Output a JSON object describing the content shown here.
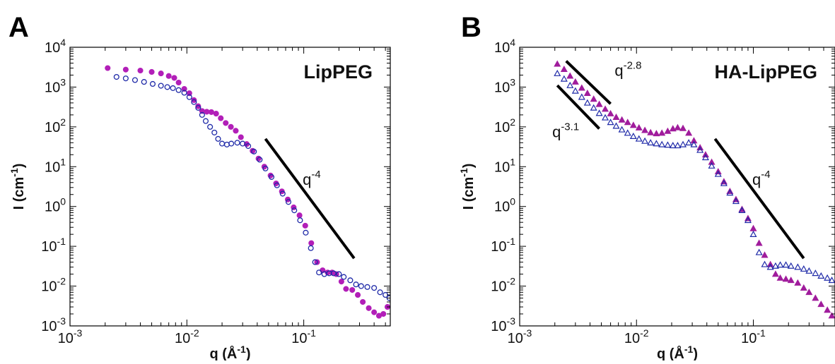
{
  "chart_data": [
    {
      "type": "scatter",
      "panel": "A",
      "title": "LipPEG",
      "xlabel": "q (Å-1)",
      "ylabel": "I (cm-1)",
      "x_scale": "log",
      "y_scale": "log",
      "xlim": [
        0.001,
        0.55
      ],
      "ylim": [
        0.001,
        10000
      ],
      "grid": false,
      "x_ticks": [
        {
          "base": "10",
          "exp": "-3",
          "value": 0.001
        },
        {
          "base": "10",
          "exp": "-2",
          "value": 0.01
        },
        {
          "base": "10",
          "exp": "-1",
          "value": 0.1
        }
      ],
      "y_ticks": [
        {
          "base": "10",
          "exp": "4",
          "value": 10000
        },
        {
          "base": "10",
          "exp": "3",
          "value": 1000
        },
        {
          "base": "10",
          "exp": "2",
          "value": 100
        },
        {
          "base": "10",
          "exp": "1",
          "value": 10
        },
        {
          "base": "10",
          "exp": "0",
          "value": 1
        },
        {
          "base": "10",
          "exp": "-1",
          "value": 0.1
        },
        {
          "base": "10",
          "exp": "-2",
          "value": 0.01
        },
        {
          "base": "10",
          "exp": "-3",
          "value": 0.001
        }
      ],
      "series": [
        {
          "color": "#b21fb8",
          "marker": "filled-circle",
          "x": [
            0.0021,
            0.003,
            0.004,
            0.005,
            0.006,
            0.007,
            0.0078,
            0.0085,
            0.0095,
            0.0105,
            0.0115,
            0.0125,
            0.0135,
            0.0148,
            0.0162,
            0.0178,
            0.0195,
            0.0215,
            0.0238,
            0.0262,
            0.029,
            0.0325,
            0.0365,
            0.041,
            0.046,
            0.052,
            0.058,
            0.065,
            0.073,
            0.082,
            0.092,
            0.103,
            0.116,
            0.13,
            0.145,
            0.16,
            0.175,
            0.19,
            0.21,
            0.23,
            0.26,
            0.29,
            0.32,
            0.36,
            0.4,
            0.44,
            0.48,
            0.52
          ],
          "y": [
            3000,
            2750,
            2600,
            2400,
            2200,
            1900,
            1700,
            1300,
            900,
            700,
            470,
            330,
            250,
            240,
            235,
            215,
            165,
            125,
            100,
            80,
            55,
            37,
            25,
            16,
            10,
            6,
            3.8,
            2.4,
            1.5,
            0.95,
            0.6,
            0.33,
            0.12,
            0.04,
            0.025,
            0.022,
            0.022,
            0.02,
            0.013,
            0.0085,
            0.008,
            0.006,
            0.004,
            0.0028,
            0.0022,
            0.0018,
            0.002,
            0.003
          ]
        },
        {
          "color": "#1f2aa8",
          "marker": "open-circle",
          "x": [
            0.0025,
            0.003,
            0.0036,
            0.0043,
            0.0051,
            0.006,
            0.0068,
            0.0076,
            0.0085,
            0.0095,
            0.0105,
            0.0115,
            0.0125,
            0.0135,
            0.0145,
            0.0158,
            0.0172,
            0.0185,
            0.02,
            0.022,
            0.024,
            0.027,
            0.03,
            0.0335,
            0.0375,
            0.042,
            0.047,
            0.053,
            0.059,
            0.066,
            0.074,
            0.083,
            0.093,
            0.104,
            0.115,
            0.125,
            0.135,
            0.15,
            0.165,
            0.18,
            0.2,
            0.22,
            0.25,
            0.28,
            0.31,
            0.35,
            0.4,
            0.45,
            0.5,
            0.54
          ],
          "y": [
            1800,
            1650,
            1500,
            1350,
            1200,
            1080,
            1000,
            940,
            840,
            720,
            560,
            420,
            300,
            200,
            140,
            100,
            72,
            50,
            38,
            36,
            38,
            40,
            38,
            33,
            24,
            15,
            9,
            5.5,
            3.4,
            2.1,
            1.3,
            0.8,
            0.45,
            0.22,
            0.09,
            0.04,
            0.022,
            0.02,
            0.021,
            0.021,
            0.02,
            0.017,
            0.014,
            0.011,
            0.01,
            0.0095,
            0.009,
            0.007,
            0.006,
            0.005
          ]
        }
      ],
      "reference_lines": [
        {
          "label_base": "q",
          "label_exp": "-4",
          "x": [
            0.047,
            0.27
          ],
          "y": [
            50,
            0.05
          ],
          "label_x": 0.098,
          "label_y": 3.5
        }
      ]
    },
    {
      "type": "scatter",
      "panel": "B",
      "title": "HA-LipPEG",
      "xlabel": "q (Å-1)",
      "ylabel": "I (cm-1)",
      "x_scale": "log",
      "y_scale": "log",
      "xlim": [
        0.001,
        0.5
      ],
      "ylim": [
        0.001,
        10000
      ],
      "grid": false,
      "x_ticks": [
        {
          "base": "10",
          "exp": "-3",
          "value": 0.001
        },
        {
          "base": "10",
          "exp": "-2",
          "value": 0.01
        },
        {
          "base": "10",
          "exp": "-1",
          "value": 0.1
        }
      ],
      "y_ticks": [
        {
          "base": "10",
          "exp": "4",
          "value": 10000
        },
        {
          "base": "10",
          "exp": "3",
          "value": 1000
        },
        {
          "base": "10",
          "exp": "2",
          "value": 100
        },
        {
          "base": "10",
          "exp": "1",
          "value": 10
        },
        {
          "base": "10",
          "exp": "0",
          "value": 1
        },
        {
          "base": "10",
          "exp": "-1",
          "value": 0.1
        },
        {
          "base": "10",
          "exp": "-2",
          "value": 0.01
        },
        {
          "base": "10",
          "exp": "-3",
          "value": 0.001
        }
      ],
      "series": [
        {
          "color": "#a01c9c",
          "marker": "filled-triangle",
          "x": [
            0.0021,
            0.0024,
            0.0027,
            0.003,
            0.0034,
            0.0038,
            0.0043,
            0.0048,
            0.0054,
            0.006,
            0.0067,
            0.0075,
            0.0084,
            0.0094,
            0.0105,
            0.0118,
            0.0132,
            0.0148,
            0.0165,
            0.0185,
            0.0205,
            0.0225,
            0.025,
            0.028,
            0.031,
            0.035,
            0.039,
            0.044,
            0.05,
            0.056,
            0.063,
            0.071,
            0.08,
            0.09,
            0.1,
            0.112,
            0.125,
            0.14,
            0.155,
            0.17,
            0.19,
            0.21,
            0.24,
            0.27,
            0.3,
            0.34,
            0.38,
            0.43,
            0.47
          ],
          "y": [
            3800,
            2800,
            1900,
            1350,
            950,
            700,
            500,
            370,
            280,
            215,
            175,
            150,
            130,
            110,
            95,
            82,
            72,
            68,
            70,
            78,
            90,
            96,
            92,
            70,
            45,
            30,
            20,
            13,
            7.5,
            4.2,
            2.4,
            1.5,
            0.85,
            0.5,
            0.28,
            0.12,
            0.06,
            0.035,
            0.02,
            0.016,
            0.015,
            0.014,
            0.012,
            0.009,
            0.007,
            0.005,
            0.0035,
            0.0025,
            0.0018
          ]
        },
        {
          "color": "#1f2aa8",
          "marker": "open-triangle",
          "x": [
            0.0021,
            0.0024,
            0.0027,
            0.003,
            0.0034,
            0.0038,
            0.0043,
            0.0048,
            0.0054,
            0.006,
            0.0067,
            0.0075,
            0.0084,
            0.0094,
            0.0105,
            0.0118,
            0.0132,
            0.0148,
            0.0165,
            0.0185,
            0.0205,
            0.0225,
            0.025,
            0.028,
            0.031,
            0.035,
            0.039,
            0.044,
            0.05,
            0.056,
            0.063,
            0.071,
            0.08,
            0.09,
            0.1,
            0.112,
            0.125,
            0.14,
            0.155,
            0.17,
            0.19,
            0.21,
            0.24,
            0.27,
            0.3,
            0.34,
            0.38,
            0.43,
            0.47
          ],
          "y": [
            2200,
            1600,
            1100,
            800,
            560,
            400,
            300,
            220,
            170,
            130,
            105,
            85,
            70,
            58,
            50,
            44,
            40,
            38,
            36,
            35,
            34,
            34,
            36,
            40,
            36,
            26,
            17,
            10.5,
            6.5,
            3.8,
            2.2,
            1.35,
            0.8,
            0.45,
            0.2,
            0.07,
            0.035,
            0.03,
            0.032,
            0.034,
            0.034,
            0.032,
            0.03,
            0.027,
            0.024,
            0.021,
            0.018,
            0.016,
            0.014
          ]
        }
      ],
      "reference_lines": [
        {
          "label_base": "q",
          "label_exp": "-2.8",
          "x": [
            0.0025,
            0.006
          ],
          "y": [
            4500,
            380
          ],
          "label_x": 0.0065,
          "label_y": 1900
        },
        {
          "label_base": "q",
          "label_exp": "-3.1",
          "x": [
            0.0021,
            0.0048
          ],
          "y": [
            1100,
            90
          ],
          "label_x": 0.0019,
          "label_y": 55
        },
        {
          "label_base": "q",
          "label_exp": "-4",
          "x": [
            0.047,
            0.27
          ],
          "y": [
            50,
            0.05
          ],
          "label_x": 0.098,
          "label_y": 3.5
        }
      ]
    }
  ]
}
